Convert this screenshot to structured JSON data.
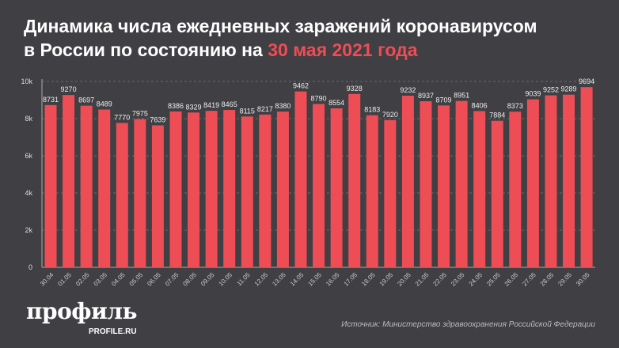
{
  "title": {
    "line1": "Динамика числа ежедневных заражений коронавирусом",
    "line2": "в России по состоянию на ",
    "highlight": "30 мая 2021 года"
  },
  "logo": {
    "name": "профиль",
    "site": "PROFILE.RU"
  },
  "source": "Источник: Министерство здравоохранения Российской Федерации",
  "colors": {
    "bar": "#ee4d55",
    "background": "#403f44",
    "highlight": "#ee4d55"
  },
  "chart_data": {
    "type": "bar",
    "title": "Динамика числа ежедневных заражений коронавирусом в России по состоянию на 30 мая 2021 года",
    "xlabel": "",
    "ylabel": "",
    "ylim": [
      0,
      10000
    ],
    "yticks": [
      0,
      2000,
      4000,
      6000,
      8000,
      10000
    ],
    "ytick_labels": [
      "0",
      "2k",
      "4k",
      "6k",
      "8k",
      "10k"
    ],
    "grid": true,
    "categories": [
      "30.04",
      "01.05",
      "02.05",
      "03.05",
      "04.05",
      "05.05",
      "06.05",
      "07.05",
      "08.05",
      "09.05",
      "10.05",
      "11.05",
      "12.05",
      "13.05",
      "14.05",
      "15.05",
      "16.05",
      "17.05",
      "18.05",
      "19.05",
      "20.05",
      "21.05",
      "22.05",
      "23.05",
      "24.05",
      "25.05",
      "26.05",
      "27.05",
      "28.05",
      "29.05",
      "30.05"
    ],
    "values": [
      8731,
      9270,
      8697,
      8489,
      7770,
      7975,
      7639,
      8386,
      8329,
      8419,
      8465,
      8115,
      8217,
      8380,
      9462,
      8790,
      8554,
      9328,
      8183,
      7920,
      9232,
      8937,
      8709,
      8951,
      8406,
      7884,
      8373,
      9039,
      9252,
      9289,
      9694
    ]
  }
}
